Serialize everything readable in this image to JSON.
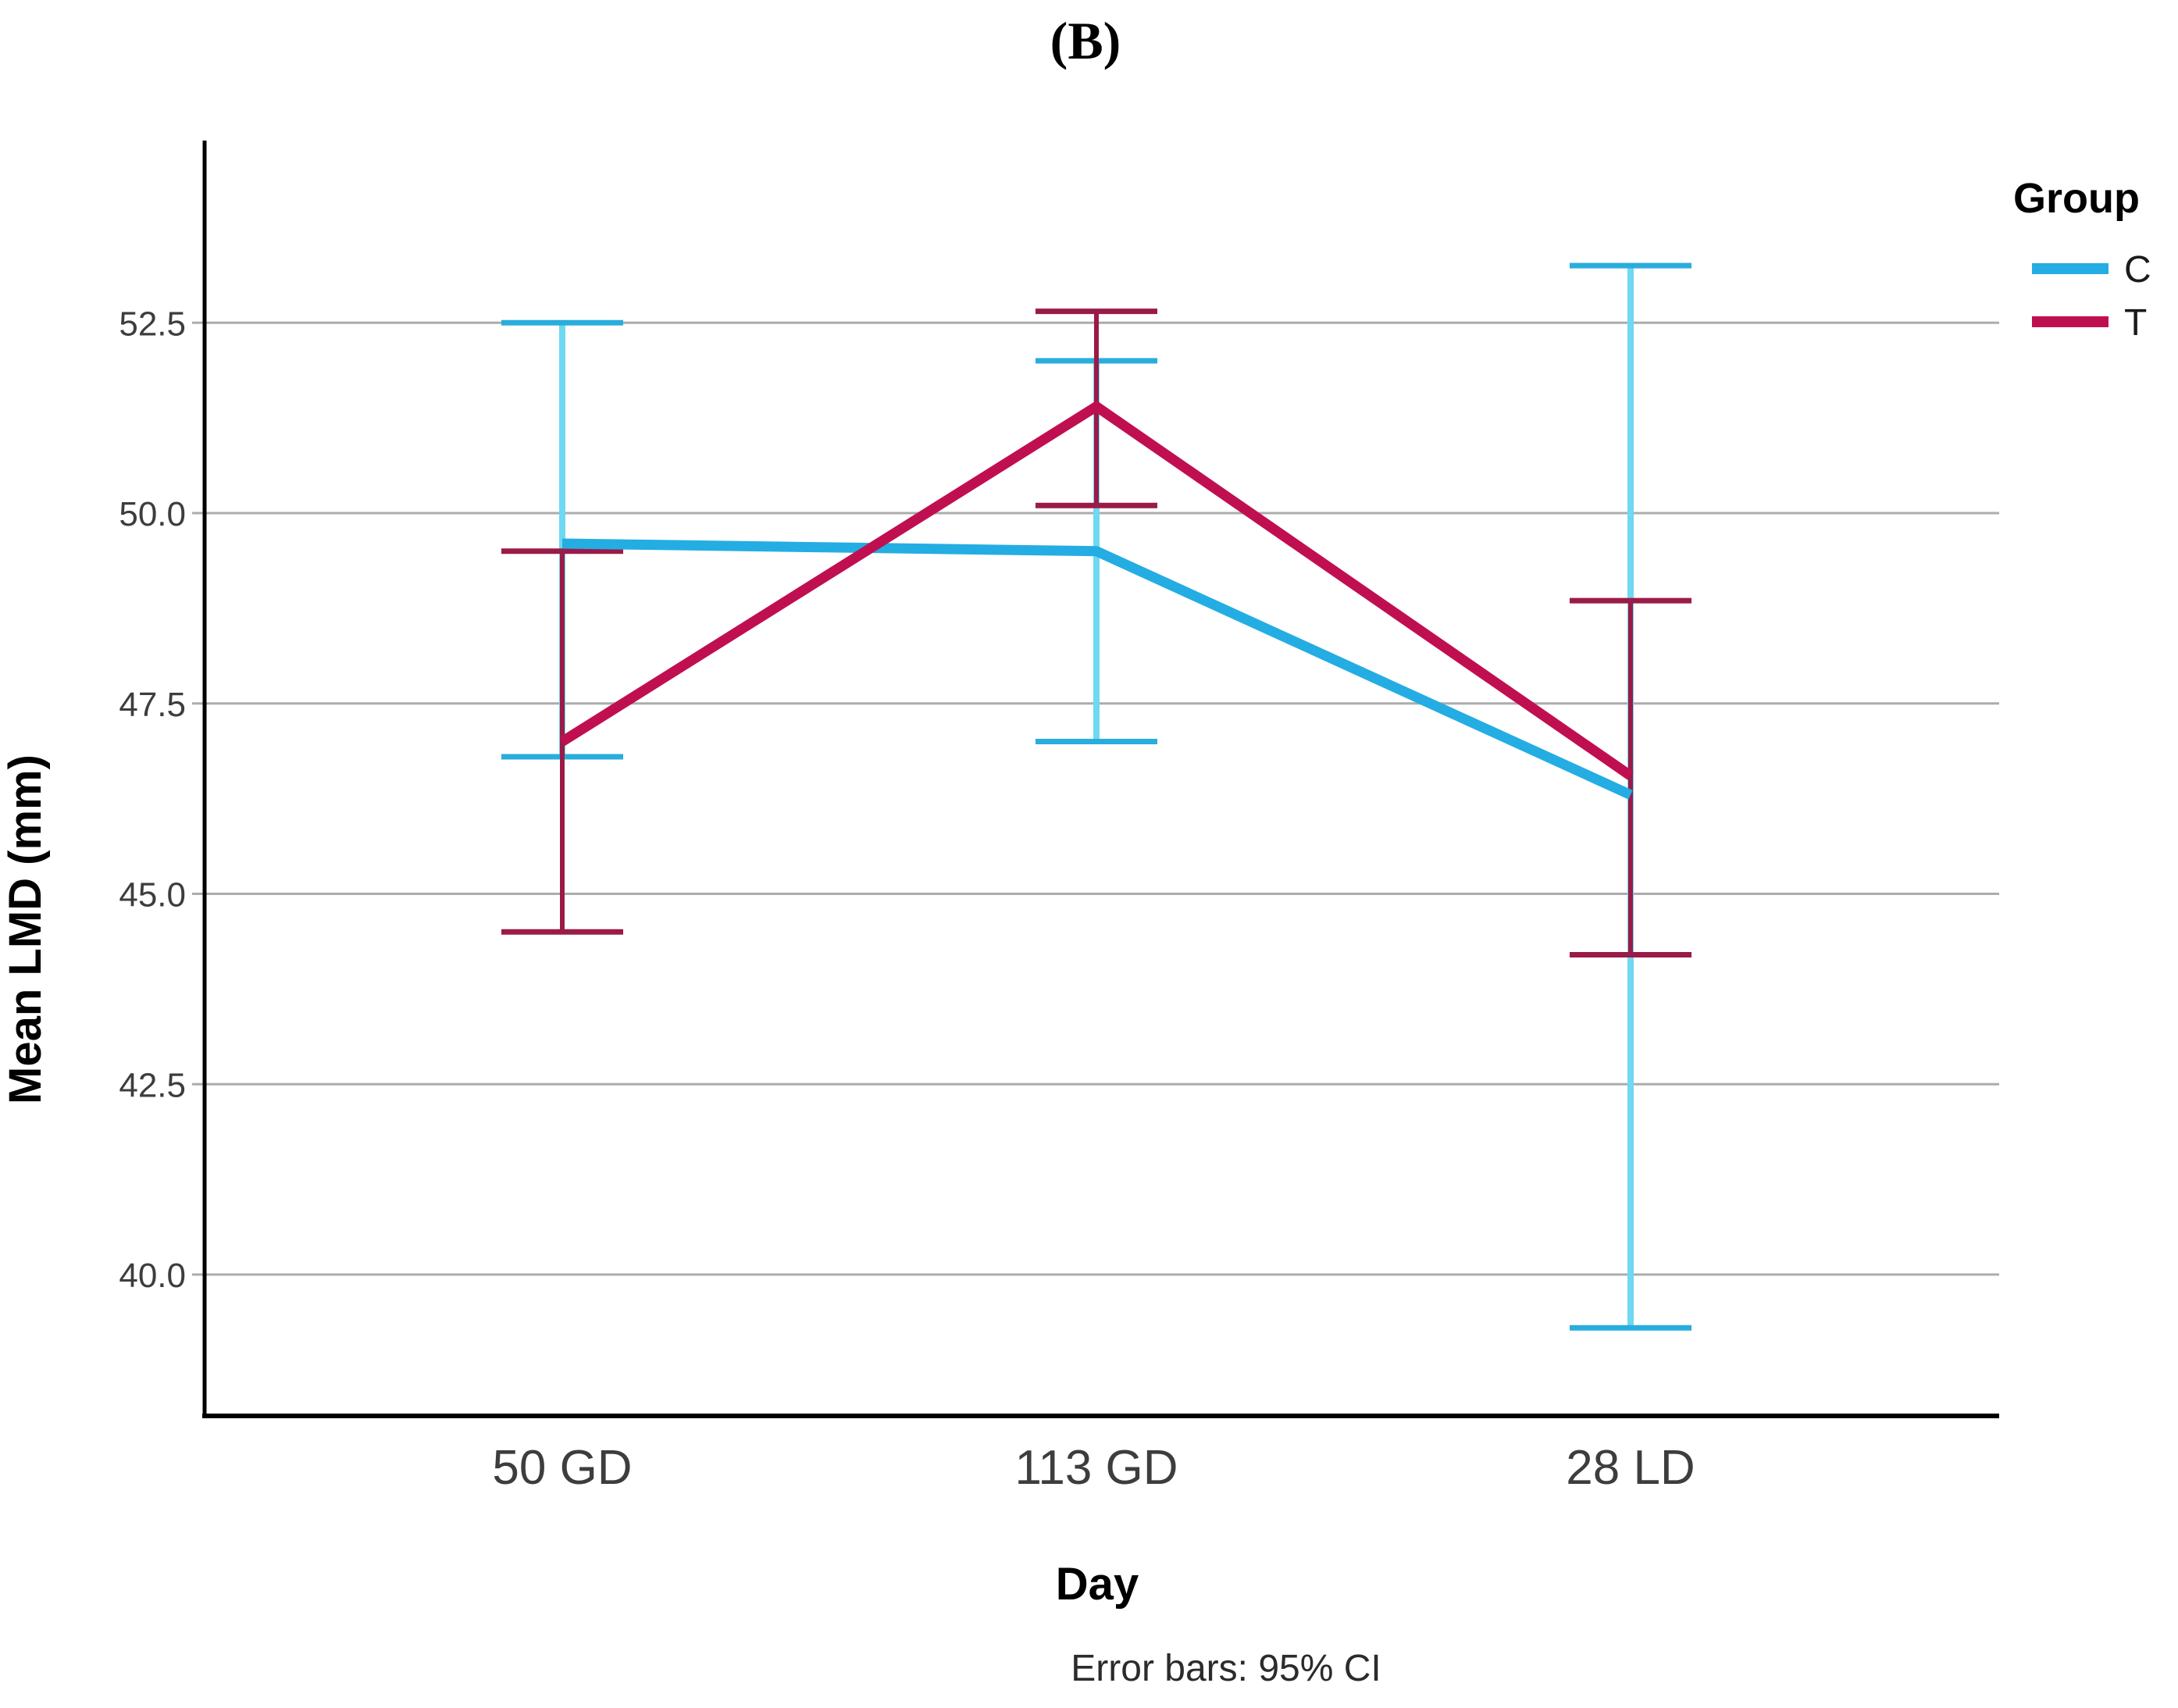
{
  "chart_data": {
    "type": "line",
    "panel_label": "(B)",
    "caption": "Error bars: 95% CI",
    "x_axis": {
      "label": "Day",
      "categories": [
        "50 GD",
        "113 GD",
        "28 LD"
      ]
    },
    "y_axis": {
      "label": "Mean LMD (mm)",
      "ticks": [
        52.5,
        50.0,
        47.5,
        45.0,
        42.5,
        40.0
      ],
      "tick_labels": [
        "52.5",
        "50.0",
        "47.5",
        "45.0",
        "42.5",
        "40.0"
      ],
      "visible_range": [
        38.2,
        54.9
      ],
      "grid": true
    },
    "legend": {
      "title": "Group",
      "position": "top-right",
      "entries": [
        {
          "label": "C",
          "color": "#24ADE2"
        },
        {
          "label": "T",
          "color": "#C00F50"
        }
      ]
    },
    "error_bar_note": "95% CI",
    "colors": {
      "gridline": "#ACACAC",
      "axis": "#000000",
      "c_line": "#24ADE2",
      "c_stem": "#6FD8F2",
      "c_cap": "#29ADDC",
      "t_line": "#C00F50",
      "t_stem": "#9A1B48",
      "t_cap": "#9A1B48"
    },
    "series": [
      {
        "name": "C",
        "color": "#24ADE2",
        "stem_color": "#6FD8F2",
        "cap_color": "#29ADDC",
        "means": [
          49.6,
          49.5,
          46.3
        ],
        "ci_low": [
          46.8,
          47.0,
          39.3
        ],
        "ci_high": [
          52.5,
          52.0,
          53.25
        ]
      },
      {
        "name": "T",
        "color": "#C00F50",
        "stem_color": "#9A1B48",
        "cap_color": "#9A1B48",
        "means": [
          47.0,
          51.4,
          46.55
        ],
        "ci_low": [
          44.5,
          50.1,
          44.2
        ],
        "ci_high": [
          49.5,
          52.65,
          48.85
        ]
      }
    ]
  }
}
